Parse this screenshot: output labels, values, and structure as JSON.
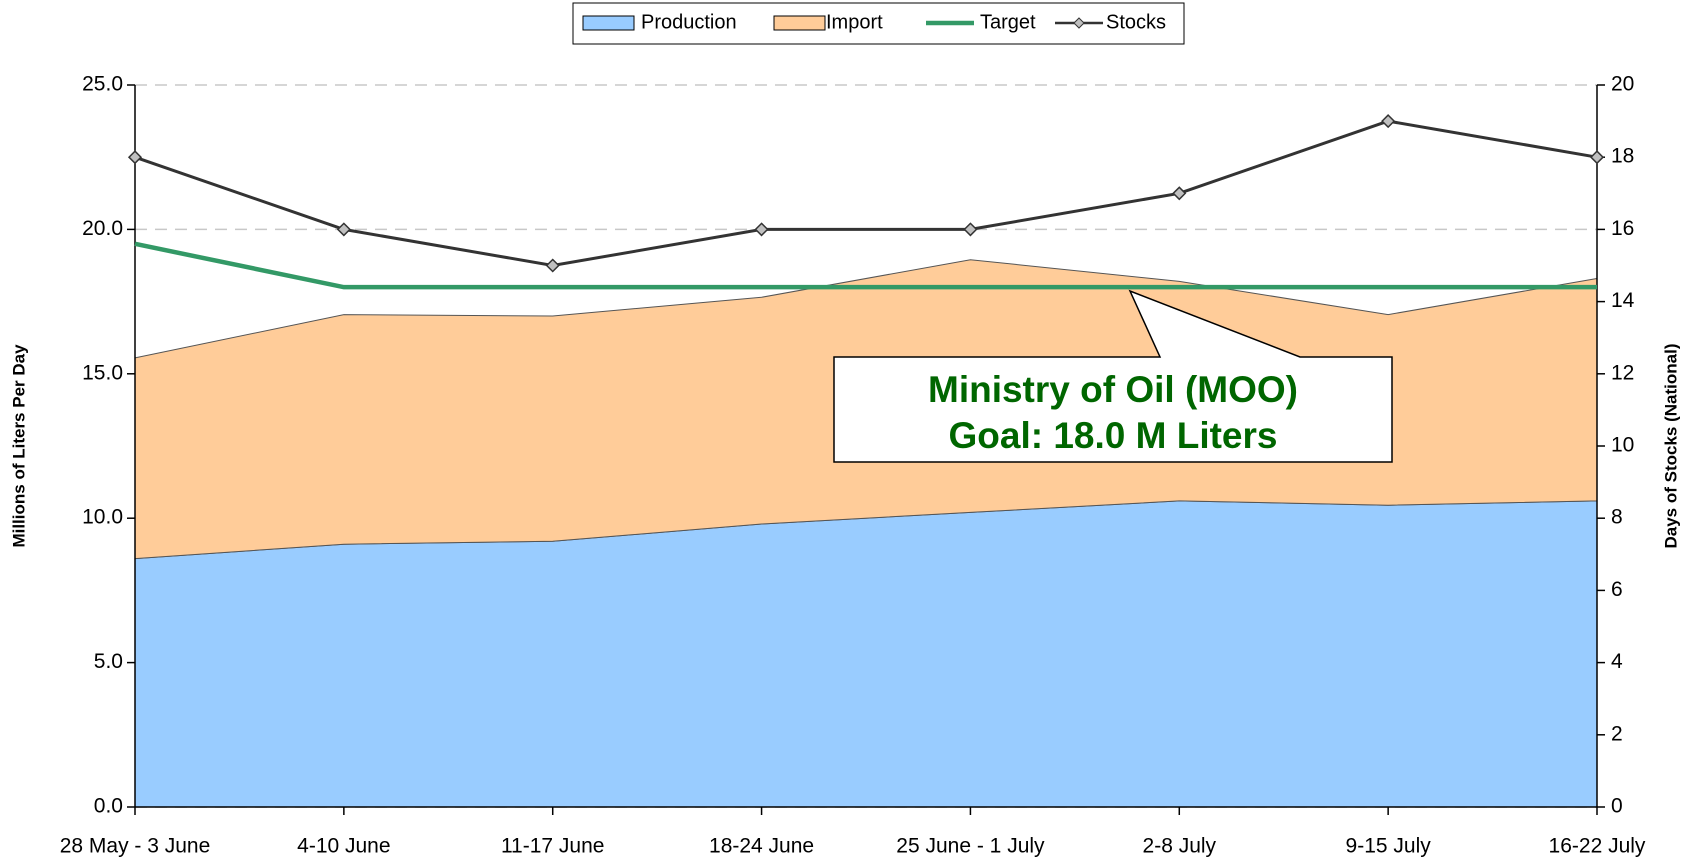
{
  "chart_data": {
    "type": "area",
    "categories": [
      "28 May - 3 June",
      "4-10 June",
      "11-17 June",
      "18-24 June",
      "25 June - 1 July",
      "2-8 July",
      "9-15 July",
      "16-22 July"
    ],
    "series": [
      {
        "name": "Production",
        "type": "area",
        "color": "#99ccff",
        "values": [
          8.6,
          9.1,
          9.2,
          9.8,
          10.2,
          10.6,
          10.45,
          10.6
        ]
      },
      {
        "name": "Import",
        "type": "area",
        "color": "#ffcc99",
        "values": [
          6.95,
          7.95,
          7.8,
          7.85,
          8.75,
          7.6,
          6.6,
          7.7
        ]
      },
      {
        "name": "Target",
        "type": "line",
        "color": "#339966",
        "values": [
          19.5,
          18.0,
          18.0,
          18.0,
          18.0,
          18.0,
          18.0,
          18.0
        ]
      },
      {
        "name": "Stocks",
        "type": "line",
        "color": "#333333",
        "marker": "diamond",
        "axis": "y2",
        "values": [
          18,
          16,
          15,
          16,
          16,
          17,
          19,
          18
        ]
      }
    ],
    "ylabel": "Millions of Liters Per Day",
    "y2label": "Days of Stocks (National)",
    "ylim": [
      0,
      25
    ],
    "yticks": [
      {
        "value": 0,
        "label": "0.0"
      },
      {
        "value": 5,
        "label": "5.0"
      },
      {
        "value": 10,
        "label": "10.0"
      },
      {
        "value": 15,
        "label": "15.0"
      },
      {
        "value": 20,
        "label": "20.0"
      },
      {
        "value": 25,
        "label": "25.0"
      }
    ],
    "y2lim": [
      0,
      20
    ],
    "y2ticks": [
      0,
      2,
      4,
      6,
      8,
      10,
      12,
      14,
      16,
      18,
      20
    ],
    "grid": true,
    "legend": "top",
    "annotations": [
      "Ministry of Oil (MOO)",
      "Goal:  18.0 M Liters"
    ]
  }
}
